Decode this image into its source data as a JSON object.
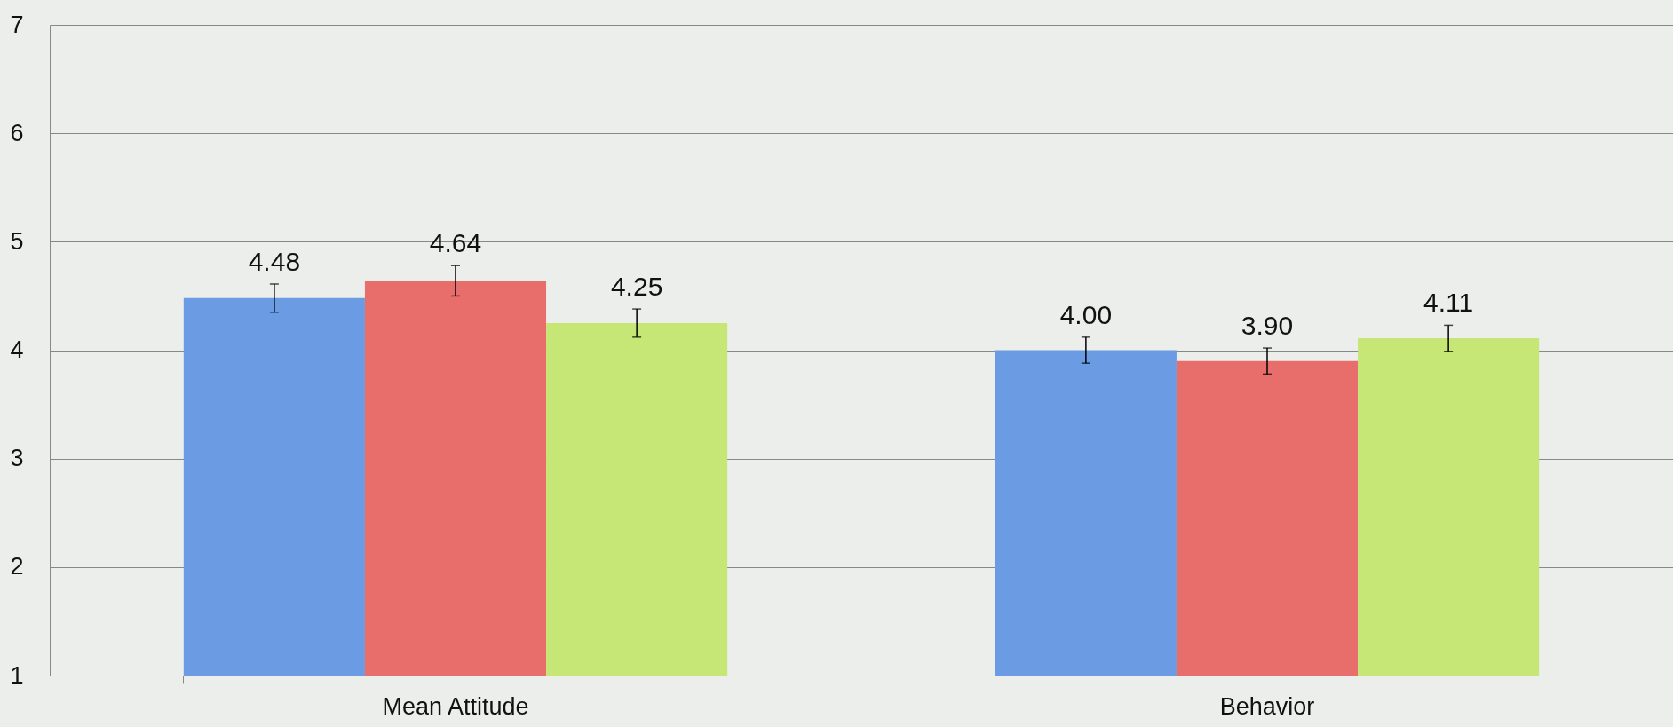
{
  "chart_data": {
    "type": "bar",
    "categories": [
      "Mean Attitude",
      "Behavior"
    ],
    "series": [
      {
        "color": "#6a9be3",
        "values": [
          4.48,
          4.0
        ],
        "errors": [
          0.13,
          0.12
        ],
        "value_labels": [
          "4.48",
          "4.00"
        ]
      },
      {
        "color": "#e86e6c",
        "values": [
          4.64,
          3.9
        ],
        "errors": [
          0.14,
          0.12
        ],
        "value_labels": [
          "4.64",
          "3.90"
        ]
      },
      {
        "color": "#c6e676",
        "values": [
          4.25,
          4.11
        ],
        "errors": [
          0.13,
          0.12
        ],
        "value_labels": [
          "4.25",
          "4.11"
        ]
      }
    ],
    "ylim": [
      1,
      7
    ],
    "yticks": [
      1,
      2,
      3,
      4,
      5,
      6,
      7
    ],
    "grid": "y",
    "legend": false
  }
}
